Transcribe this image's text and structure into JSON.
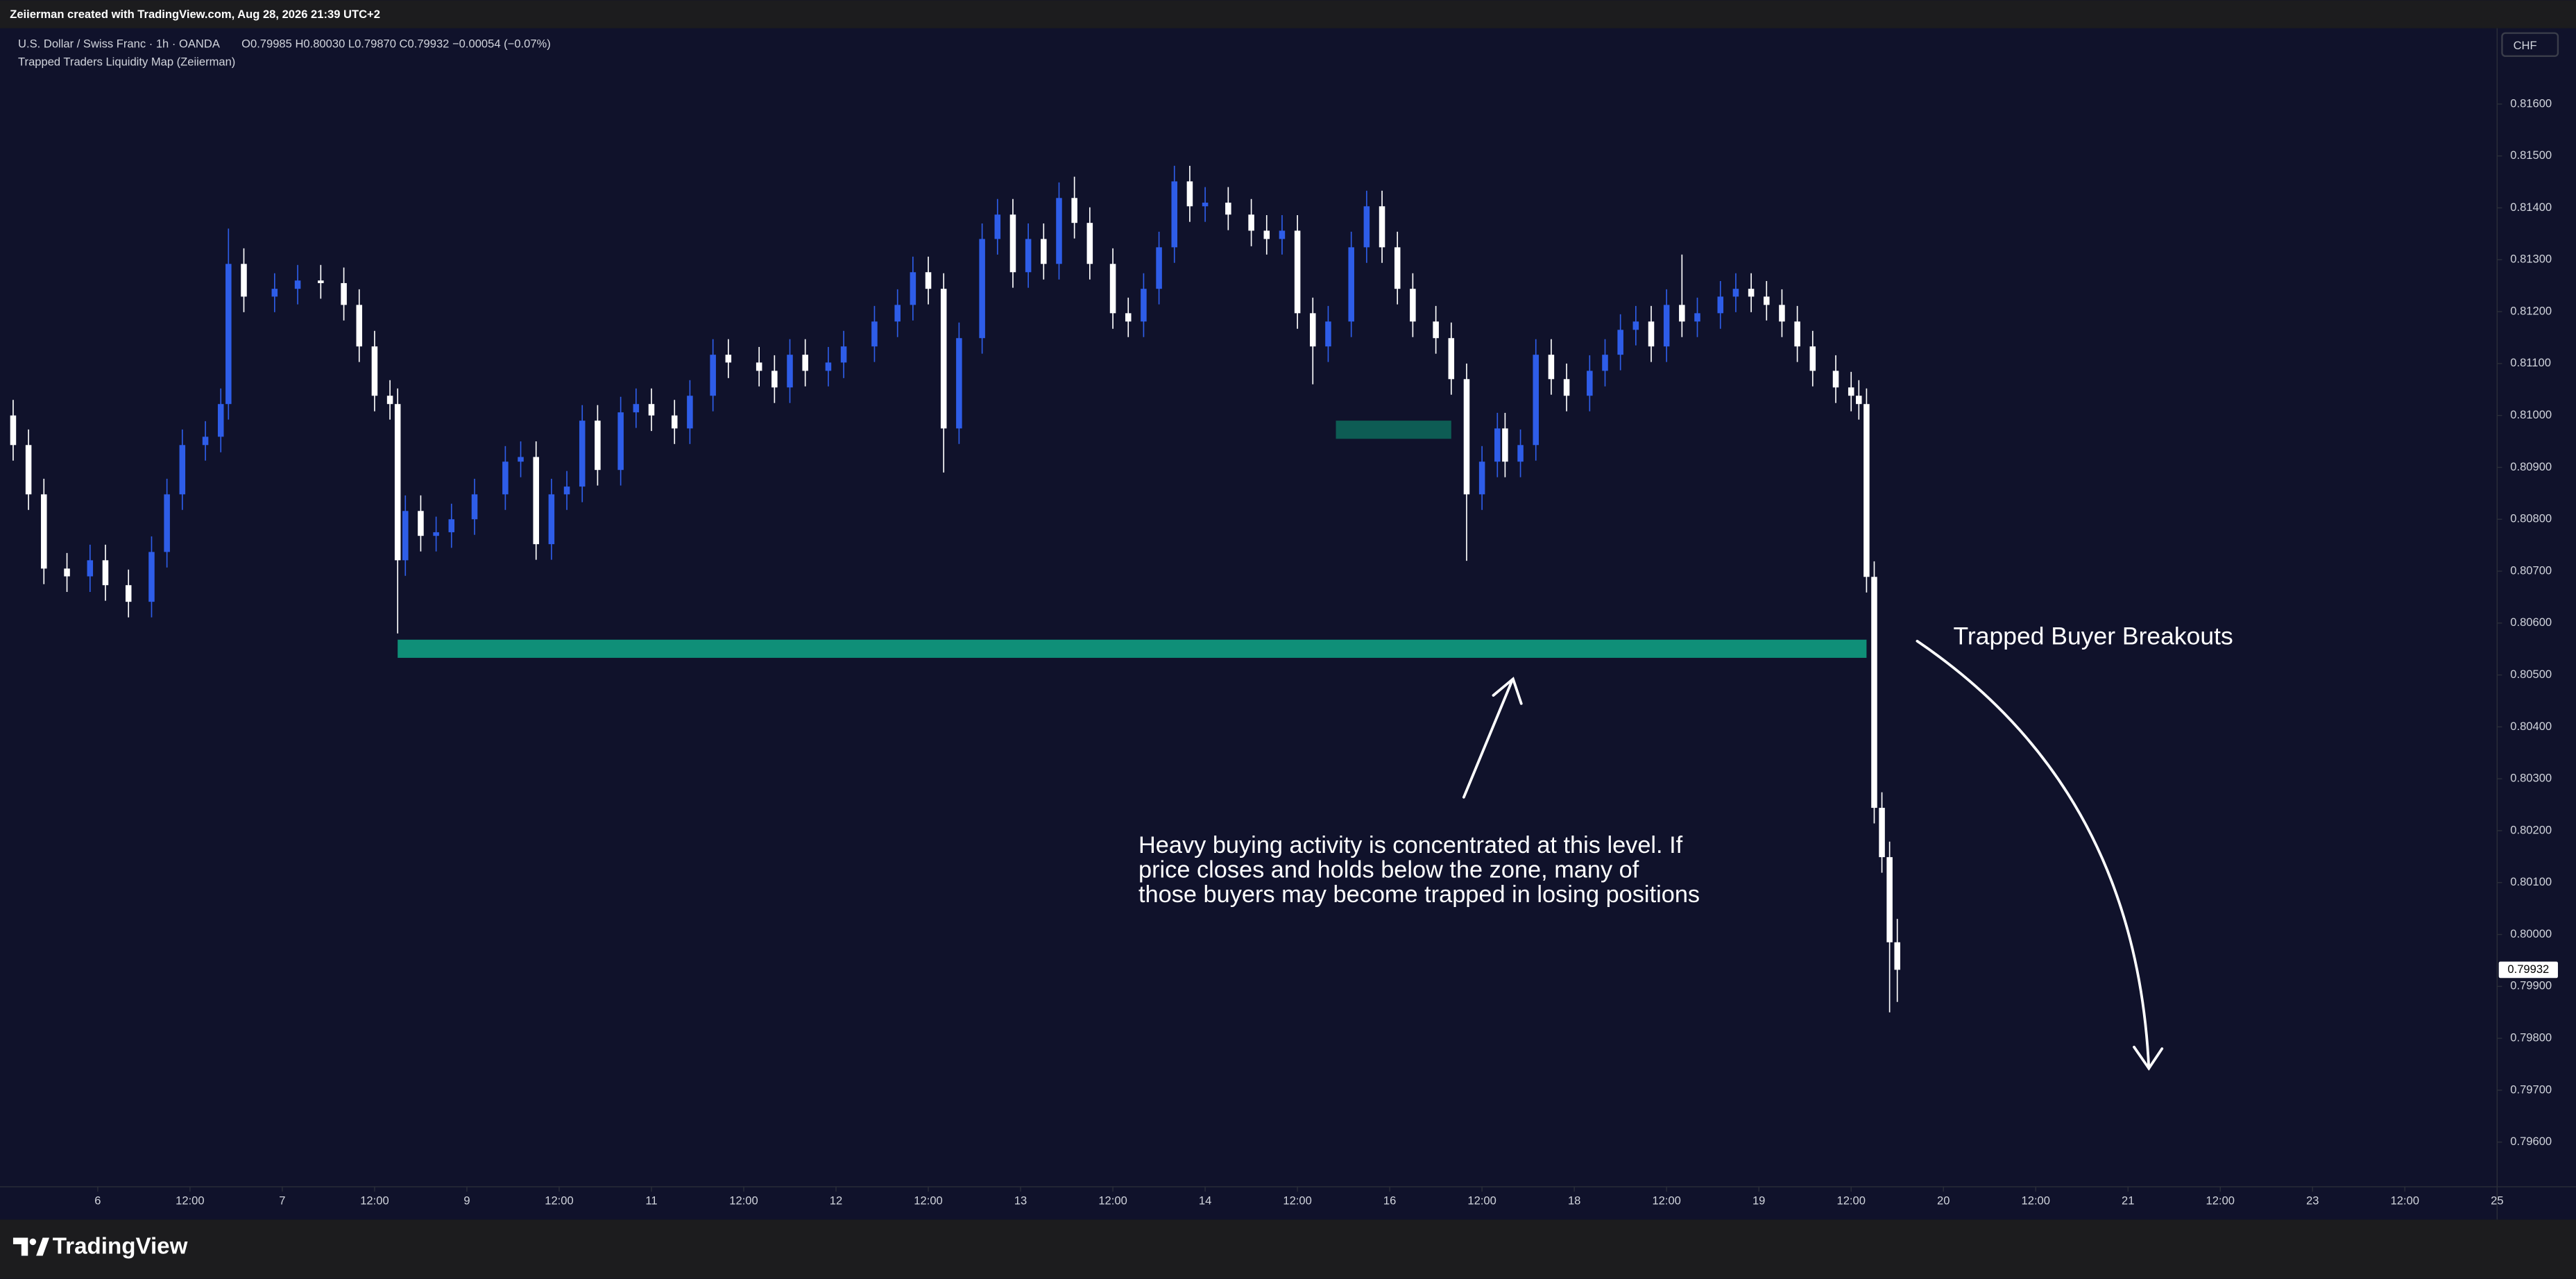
{
  "header": {
    "credit": "Zeiierman created with TradingView.com, Aug 28, 2026 21:39 UTC+2",
    "symbol": "U.S. Dollar / Swiss Franc · 1h · OANDA",
    "ohlc": "O0.79985 H0.80030 L0.79870 C0.79932 −0.00054 (−0.07%)",
    "indicator": "Trapped Traders Liquidity Map (Zeiierman)",
    "currency": "CHF"
  },
  "footer": {
    "brand": "TradingView"
  },
  "chart_data": {
    "type": "candlestick",
    "up_color": "#2e5de8",
    "down_color": "#ffffff",
    "x": [
      -11,
      -9,
      -7,
      -4,
      -1,
      1,
      4,
      7,
      9,
      11,
      14,
      16,
      17,
      19,
      23,
      26,
      29,
      32,
      34,
      36,
      38,
      39,
      40,
      42,
      44,
      46,
      49,
      53,
      55,
      57,
      59,
      61,
      63,
      65,
      68,
      70,
      72,
      75,
      77,
      80,
      82,
      86,
      88,
      90,
      92,
      95,
      97,
      101,
      104,
      106,
      108,
      110,
      112,
      115,
      117,
      119,
      121,
      123,
      125,
      127,
      129,
      132,
      134,
      136,
      138,
      140,
      142,
      144,
      147,
      150,
      152,
      154,
      156,
      158,
      160,
      163,
      165,
      167,
      169,
      171,
      174,
      176,
      178,
      180,
      182,
      183,
      185,
      187,
      189,
      191,
      194,
      196,
      198,
      200,
      202,
      204,
      206,
      208,
      211,
      213,
      215,
      217,
      219,
      221,
      223,
      226,
      228,
      229,
      230,
      231,
      232,
      233,
      234
    ],
    "open": [
      0.81,
      0.80943,
      0.80848,
      0.80705,
      0.8069,
      0.80721,
      0.80673,
      0.80641,
      0.80737,
      0.80848,
      0.80943,
      0.80959,
      0.81022,
      0.81292,
      0.81229,
      0.81244,
      0.8126,
      0.81255,
      0.81213,
      0.81133,
      0.81038,
      0.81022,
      0.80721,
      0.80816,
      0.80768,
      0.80775,
      0.808,
      0.80848,
      0.80911,
      0.8092,
      0.80752,
      0.80848,
      0.80863,
      0.8099,
      0.80895,
      0.81006,
      0.81022,
      0.81,
      0.80975,
      0.81038,
      0.81117,
      0.81102,
      0.81086,
      0.81054,
      0.81117,
      0.81086,
      0.81102,
      0.81133,
      0.81181,
      0.81213,
      0.81276,
      0.81244,
      0.80975,
      0.81149,
      0.8134,
      0.81387,
      0.81276,
      0.8134,
      0.81292,
      0.81419,
      0.81371,
      0.81292,
      0.81197,
      0.81181,
      0.81244,
      0.81324,
      0.81451,
      0.81403,
      0.8141,
      0.81387,
      0.81356,
      0.8134,
      0.81356,
      0.81197,
      0.81133,
      0.81181,
      0.81324,
      0.81403,
      0.81324,
      0.81244,
      0.81181,
      0.81149,
      0.8107,
      0.80848,
      0.80911,
      0.80975,
      0.80911,
      0.80943,
      0.81117,
      0.8107,
      0.81038,
      0.81086,
      0.81117,
      0.81165,
      0.81181,
      0.81133,
      0.81213,
      0.81181,
      0.81197,
      0.81229,
      0.81244,
      0.81229,
      0.81213,
      0.81181,
      0.81133,
      0.81086,
      0.81054,
      0.81038,
      0.81022,
      0.80689,
      0.80244,
      0.80149,
      0.79985
    ],
    "high": [
      0.8103,
      0.80973,
      0.80878,
      0.80735,
      0.80751,
      0.80751,
      0.80703,
      0.80767,
      0.80878,
      0.80973,
      0.80989,
      0.81052,
      0.8136,
      0.81322,
      0.81274,
      0.8129,
      0.8129,
      0.81285,
      0.81243,
      0.81163,
      0.81068,
      0.81052,
      0.80846,
      0.80846,
      0.80805,
      0.8083,
      0.80878,
      0.80941,
      0.8095,
      0.8095,
      0.80878,
      0.80893,
      0.8102,
      0.8102,
      0.81036,
      0.81052,
      0.81052,
      0.8103,
      0.81068,
      0.81147,
      0.81147,
      0.81132,
      0.81116,
      0.81147,
      0.81147,
      0.81132,
      0.81163,
      0.81211,
      0.81243,
      0.81306,
      0.81306,
      0.81274,
      0.81179,
      0.8137,
      0.81417,
      0.81417,
      0.8137,
      0.8137,
      0.81449,
      0.8146,
      0.81401,
      0.81322,
      0.81227,
      0.81274,
      0.81354,
      0.81481,
      0.81481,
      0.8144,
      0.8144,
      0.81417,
      0.81386,
      0.81386,
      0.81386,
      0.81227,
      0.81211,
      0.81354,
      0.81433,
      0.81433,
      0.81354,
      0.81274,
      0.81211,
      0.81179,
      0.811,
      0.80941,
      0.81005,
      0.81005,
      0.80973,
      0.81147,
      0.81147,
      0.811,
      0.81116,
      0.81147,
      0.81195,
      0.81211,
      0.81211,
      0.81243,
      0.8131,
      0.81227,
      0.81259,
      0.81274,
      0.81274,
      0.81259,
      0.81243,
      0.81211,
      0.81163,
      0.81116,
      0.81084,
      0.81068,
      0.81052,
      0.80719,
      0.80274,
      0.80179,
      0.8003
    ],
    "low": [
      0.80913,
      0.80818,
      0.80675,
      0.8066,
      0.8066,
      0.80643,
      0.80611,
      0.80611,
      0.80707,
      0.80818,
      0.80913,
      0.80929,
      0.80992,
      0.81199,
      0.81199,
      0.81214,
      0.81225,
      0.81183,
      0.81103,
      0.81008,
      0.80992,
      0.8058,
      0.80691,
      0.80738,
      0.80738,
      0.80745,
      0.8077,
      0.80818,
      0.80881,
      0.80722,
      0.80722,
      0.80818,
      0.80833,
      0.80865,
      0.80865,
      0.80976,
      0.8097,
      0.80945,
      0.80945,
      0.81008,
      0.81072,
      0.81056,
      0.81024,
      0.81024,
      0.81056,
      0.81056,
      0.81072,
      0.81103,
      0.81151,
      0.81183,
      0.81214,
      0.8089,
      0.80945,
      0.81119,
      0.8131,
      0.81246,
      0.81246,
      0.81262,
      0.81262,
      0.81341,
      0.81262,
      0.81167,
      0.81151,
      0.81151,
      0.81214,
      0.81294,
      0.81373,
      0.81373,
      0.81357,
      0.81326,
      0.8131,
      0.8131,
      0.81167,
      0.8106,
      0.81103,
      0.81151,
      0.81294,
      0.81294,
      0.81214,
      0.81151,
      0.81119,
      0.8104,
      0.8072,
      0.80818,
      0.80881,
      0.80881,
      0.80881,
      0.80913,
      0.8104,
      0.81008,
      0.81008,
      0.81056,
      0.81087,
      0.81135,
      0.81103,
      0.81103,
      0.81151,
      0.81151,
      0.81167,
      0.81199,
      0.81199,
      0.81183,
      0.81151,
      0.81103,
      0.81056,
      0.81024,
      0.81008,
      0.80992,
      0.80659,
      0.80214,
      0.80119,
      0.7985,
      0.7987
    ],
    "close": [
      0.80943,
      0.80848,
      0.80705,
      0.8069,
      0.80721,
      0.80673,
      0.80641,
      0.80737,
      0.80848,
      0.80943,
      0.80959,
      0.81022,
      0.81292,
      0.81229,
      0.81244,
      0.8126,
      0.81255,
      0.81213,
      0.81133,
      0.81038,
      0.81022,
      0.80721,
      0.80816,
      0.80768,
      0.80775,
      0.808,
      0.80848,
      0.80911,
      0.8092,
      0.80752,
      0.80848,
      0.80863,
      0.8099,
      0.80895,
      0.81006,
      0.81022,
      0.81,
      0.80975,
      0.81038,
      0.81117,
      0.81102,
      0.81086,
      0.81054,
      0.81117,
      0.81086,
      0.81102,
      0.81133,
      0.81181,
      0.81213,
      0.81276,
      0.81244,
      0.80975,
      0.81149,
      0.8134,
      0.81387,
      0.81276,
      0.8134,
      0.81292,
      0.81419,
      0.81371,
      0.81292,
      0.81197,
      0.81181,
      0.81244,
      0.81324,
      0.81451,
      0.81403,
      0.8141,
      0.81387,
      0.81356,
      0.8134,
      0.81356,
      0.81197,
      0.81133,
      0.81181,
      0.81324,
      0.81403,
      0.81324,
      0.81244,
      0.81181,
      0.81149,
      0.8107,
      0.80848,
      0.80911,
      0.80975,
      0.80911,
      0.80943,
      0.81117,
      0.8107,
      0.81038,
      0.81086,
      0.81117,
      0.81165,
      0.81181,
      0.81133,
      0.81213,
      0.81181,
      0.81197,
      0.81229,
      0.81244,
      0.81229,
      0.81213,
      0.81181,
      0.81133,
      0.81086,
      0.81054,
      0.81038,
      0.81022,
      0.80689,
      0.80244,
      0.80149,
      0.79985,
      0.79932
    ],
    "zones": [
      {
        "x": [
          39,
          230
        ],
        "y": [
          0.80533,
          0.80568
        ],
        "color": "#0f8f78"
      },
      {
        "x": [
          161,
          176
        ],
        "y": [
          0.80955,
          0.8099
        ],
        "color": "#0d5c54"
      }
    ],
    "xlim": [
      -11,
      312
    ],
    "xticks": [
      {
        "value": 0,
        "label": "6"
      },
      {
        "value": 12,
        "label": "12:00"
      },
      {
        "value": 24,
        "label": "7"
      },
      {
        "value": 36,
        "label": "12:00"
      },
      {
        "value": 48,
        "label": "9"
      },
      {
        "value": 60,
        "label": "12:00"
      },
      {
        "value": 72,
        "label": "11"
      },
      {
        "value": 84,
        "label": "12:00"
      },
      {
        "value": 96,
        "label": "12"
      },
      {
        "value": 108,
        "label": "12:00"
      },
      {
        "value": 120,
        "label": "13"
      },
      {
        "value": 132,
        "label": "12:00"
      },
      {
        "value": 144,
        "label": "14"
      },
      {
        "value": 156,
        "label": "12:00"
      },
      {
        "value": 168,
        "label": "16"
      },
      {
        "value": 180,
        "label": "12:00"
      },
      {
        "value": 192,
        "label": "18"
      },
      {
        "value": 204,
        "label": "12:00"
      },
      {
        "value": 216,
        "label": "19"
      },
      {
        "value": 228,
        "label": "12:00"
      },
      {
        "value": 240,
        "label": "20"
      },
      {
        "value": 252,
        "label": "12:00"
      },
      {
        "value": 264,
        "label": "21"
      },
      {
        "value": 276,
        "label": "12:00"
      },
      {
        "value": 288,
        "label": "23"
      },
      {
        "value": 300,
        "label": "12:00"
      },
      {
        "value": 312,
        "label": "25"
      }
    ],
    "ylim": [
      0.79514,
      0.81743
    ],
    "yticks": [
      {
        "value": 0.796,
        "label": "0.79600"
      },
      {
        "value": 0.797,
        "label": "0.79700"
      },
      {
        "value": 0.798,
        "label": "0.79800"
      },
      {
        "value": 0.799,
        "label": "0.79900"
      },
      {
        "value": 0.8,
        "label": "0.80000"
      },
      {
        "value": 0.801,
        "label": "0.80100"
      },
      {
        "value": 0.802,
        "label": "0.80200"
      },
      {
        "value": 0.803,
        "label": "0.80300"
      },
      {
        "value": 0.804,
        "label": "0.80400"
      },
      {
        "value": 0.805,
        "label": "0.80500"
      },
      {
        "value": 0.806,
        "label": "0.80600"
      },
      {
        "value": 0.807,
        "label": "0.80700"
      },
      {
        "value": 0.808,
        "label": "0.80800"
      },
      {
        "value": 0.809,
        "label": "0.80900"
      },
      {
        "value": 0.81,
        "label": "0.81000"
      },
      {
        "value": 0.811,
        "label": "0.81100"
      },
      {
        "value": 0.812,
        "label": "0.81200"
      },
      {
        "value": 0.813,
        "label": "0.81300"
      },
      {
        "value": 0.814,
        "label": "0.81400"
      },
      {
        "value": 0.815,
        "label": "0.81500"
      },
      {
        "value": 0.816,
        "label": "0.81600"
      }
    ],
    "annotations": [
      "Heavy buying activity is concentrated at this level. If",
      "price closes and holds below the zone, many of",
      "those buyers may become trapped in losing positions",
      "Trapped Buyer Breakouts"
    ]
  }
}
